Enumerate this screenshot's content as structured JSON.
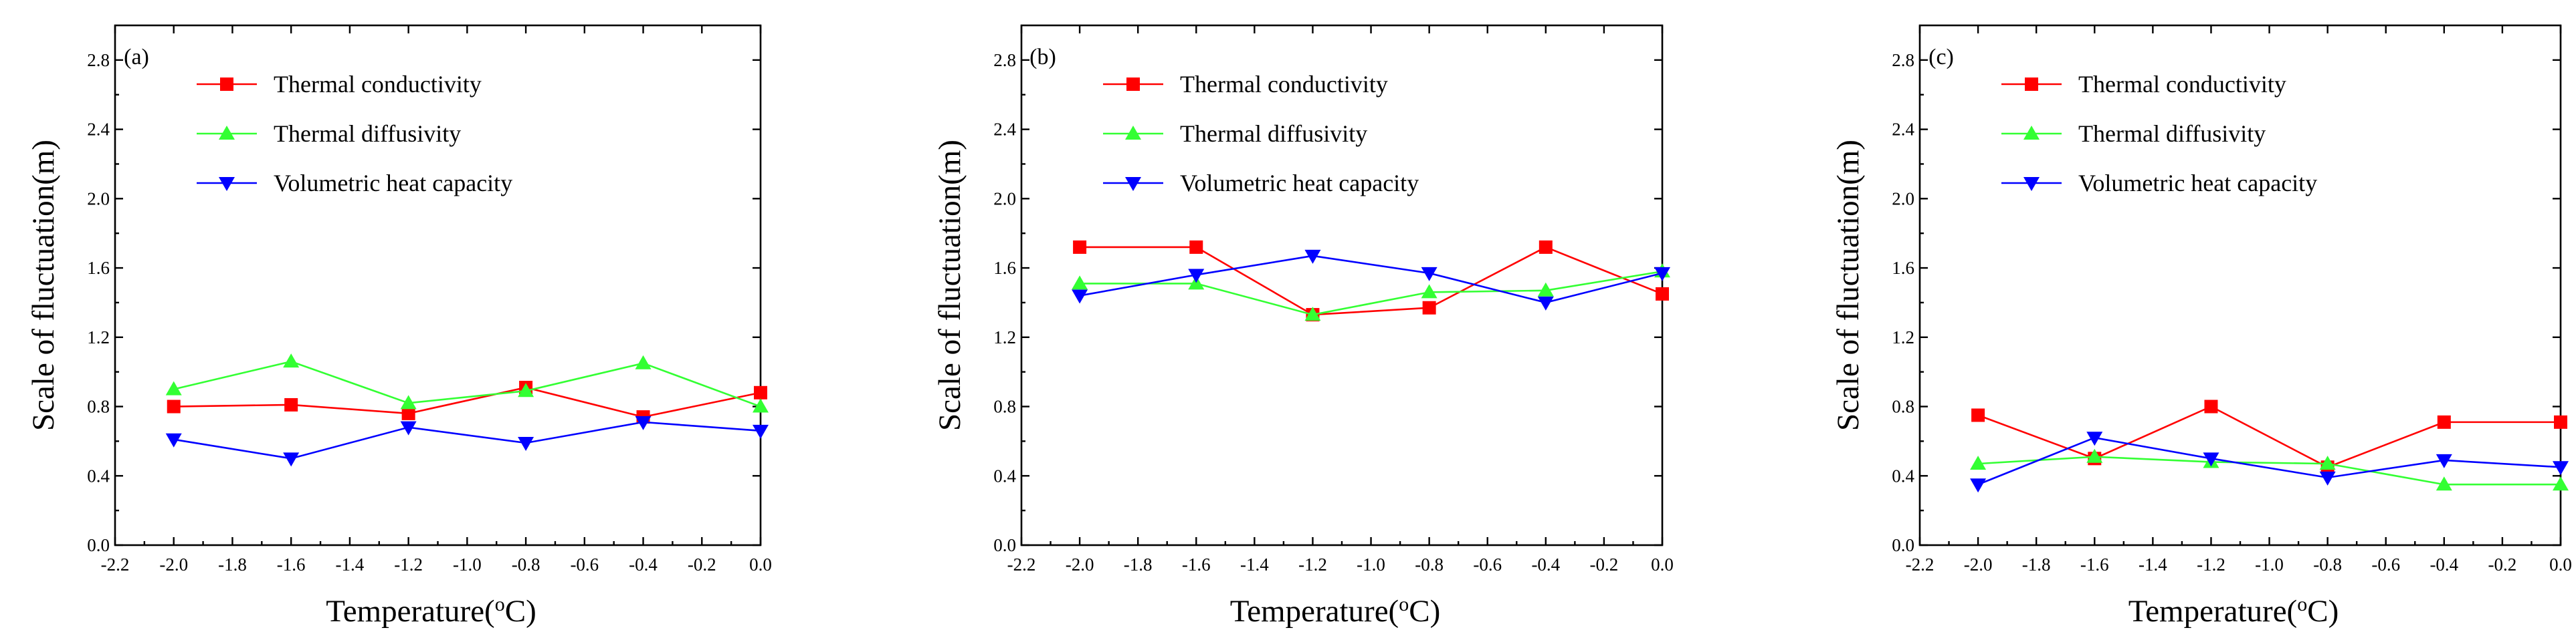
{
  "chart_data": [
    {
      "type": "line",
      "panel_label": "(a)",
      "xlabel": "Temperature(",
      "xlabel_sup": "o",
      "xlabel_unit": "C)",
      "ylabel": "Scale of fluctuation(m)",
      "xlim": [
        -2.2,
        0.0
      ],
      "ylim": [
        0.0,
        3.0
      ],
      "xticks": [
        "-2.2",
        "-2.0",
        "-1.8",
        "-1.6",
        "-1.4",
        "-1.2",
        "-1.0",
        "-0.8",
        "-0.6",
        "-0.4",
        "-0.2",
        "0.0"
      ],
      "yticks": [
        "0.0",
        "0.4",
        "0.8",
        "1.2",
        "1.6",
        "2.0",
        "2.4",
        "2.8"
      ],
      "legend_position": "top-left",
      "x": [
        -2.0,
        -1.6,
        -1.2,
        -0.8,
        -0.4,
        0.0
      ],
      "series": [
        {
          "name": "Thermal conductivity",
          "color": "#ff0000",
          "marker": "square",
          "values": [
            0.8,
            0.81,
            0.76,
            0.91,
            0.74,
            0.88
          ]
        },
        {
          "name": "Thermal diffusivity",
          "color": "#33ff33",
          "marker": "triangle-up",
          "values": [
            0.9,
            1.06,
            0.82,
            0.89,
            1.05,
            0.8
          ]
        },
        {
          "name": "Volumetric heat capacity",
          "color": "#0000ff",
          "marker": "triangle-down",
          "values": [
            0.61,
            0.5,
            0.68,
            0.59,
            0.71,
            0.66
          ]
        }
      ]
    },
    {
      "type": "line",
      "panel_label": "(b)",
      "xlabel": "Temperature(",
      "xlabel_sup": "o",
      "xlabel_unit": "C)",
      "ylabel": "Scale of fluctuation(m)",
      "xlim": [
        -2.2,
        0.0
      ],
      "ylim": [
        0.0,
        3.0
      ],
      "xticks": [
        "-2.2",
        "-2.0",
        "-1.8",
        "-1.6",
        "-1.4",
        "-1.2",
        "-1.0",
        "-0.8",
        "-0.6",
        "-0.4",
        "-0.2",
        "0.0"
      ],
      "yticks": [
        "0.0",
        "0.4",
        "0.8",
        "1.2",
        "1.6",
        "2.0",
        "2.4",
        "2.8"
      ],
      "legend_position": "top-left",
      "x": [
        -2.0,
        -1.6,
        -1.2,
        -0.8,
        -0.4,
        0.0
      ],
      "series": [
        {
          "name": "Thermal conductivity",
          "color": "#ff0000",
          "marker": "square",
          "values": [
            1.72,
            1.72,
            1.33,
            1.37,
            1.72,
            1.45
          ]
        },
        {
          "name": "Thermal diffusivity",
          "color": "#33ff33",
          "marker": "triangle-up",
          "values": [
            1.51,
            1.51,
            1.33,
            1.46,
            1.47,
            1.58
          ]
        },
        {
          "name": "Volumetric heat capacity",
          "color": "#0000ff",
          "marker": "triangle-down",
          "values": [
            1.44,
            1.56,
            1.67,
            1.57,
            1.4,
            1.57
          ]
        }
      ]
    },
    {
      "type": "line",
      "panel_label": "(c)",
      "xlabel": "Temperature(",
      "xlabel_sup": "o",
      "xlabel_unit": "C)",
      "ylabel": "Scale of fluctuation(m)",
      "xlim": [
        -2.2,
        0.0
      ],
      "ylim": [
        0.0,
        3.0
      ],
      "xticks": [
        "-2.2",
        "-2.0",
        "-1.8",
        "-1.6",
        "-1.4",
        "-1.2",
        "-1.0",
        "-0.8",
        "-0.6",
        "-0.4",
        "-0.2",
        "0.0"
      ],
      "yticks": [
        "0.0",
        "0.4",
        "0.8",
        "1.2",
        "1.6",
        "2.0",
        "2.4",
        "2.8"
      ],
      "legend_position": "top-left",
      "x": [
        -2.0,
        -1.6,
        -1.2,
        -0.8,
        -0.4,
        0.0
      ],
      "series": [
        {
          "name": "Thermal conductivity",
          "color": "#ff0000",
          "marker": "square",
          "values": [
            0.75,
            0.5,
            0.8,
            0.45,
            0.71,
            0.71
          ]
        },
        {
          "name": "Thermal diffusivity",
          "color": "#33ff33",
          "marker": "triangle-up",
          "values": [
            0.47,
            0.51,
            0.48,
            0.47,
            0.35,
            0.35
          ]
        },
        {
          "name": "Volumetric heat capacity",
          "color": "#0000ff",
          "marker": "triangle-down",
          "values": [
            0.35,
            0.62,
            0.5,
            0.39,
            0.49,
            0.45
          ]
        }
      ]
    }
  ]
}
